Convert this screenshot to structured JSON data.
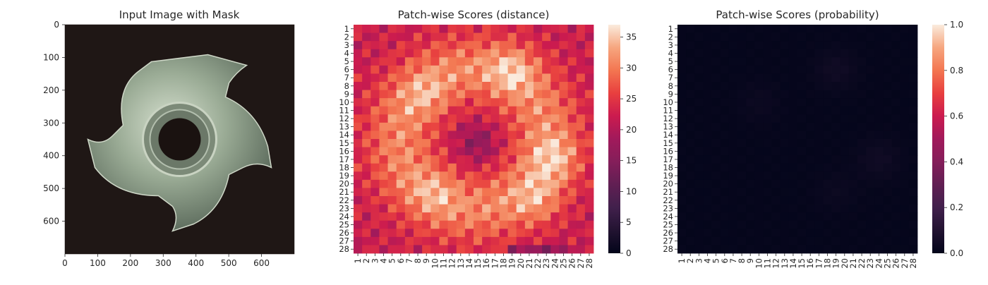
{
  "chart_data": [
    {
      "type": "image",
      "title": "Input Image with Mask",
      "xlim": [
        0,
        700
      ],
      "ylim": [
        700,
        0
      ],
      "xticks": [
        0,
        100,
        200,
        300,
        400,
        500,
        600
      ],
      "yticks": [
        0,
        100,
        200,
        300,
        400,
        500,
        600
      ],
      "image_content": "metal four-prong tee nut on dark background",
      "colors": {
        "background": "#1f1715",
        "metal": "#a8b8a0"
      }
    },
    {
      "type": "heatmap",
      "title": "Patch-wise Scores (distance)",
      "rows": 28,
      "cols": 28,
      "tick_labels": [
        "1",
        "2",
        "3",
        "4",
        "5",
        "6",
        "7",
        "8",
        "9",
        "10",
        "11",
        "12",
        "13",
        "14",
        "15",
        "16",
        "17",
        "18",
        "19",
        "20",
        "21",
        "22",
        "23",
        "24",
        "25",
        "26",
        "27",
        "28"
      ],
      "colorbar": {
        "min": 0,
        "max": 37,
        "ticks": [
          0,
          5,
          10,
          15,
          20,
          25,
          30,
          35
        ]
      },
      "colormap": "rocket",
      "pattern": "high values (~30-37) on the ring of the nut, lower values (~15-24) at centre and borders",
      "value_model": {
        "base": 22,
        "ring_amp": 9,
        "ring_radius_cells": 8.5,
        "hotspots": [
          [
            6,
            19,
            6
          ],
          [
            9,
            9,
            4
          ],
          [
            17,
            24,
            6
          ],
          [
            21,
            10,
            4
          ],
          [
            22,
            22,
            5
          ]
        ],
        "centre": [
          15,
          15,
          -6
        ]
      }
    },
    {
      "type": "heatmap",
      "title": "Patch-wise Scores (probability)",
      "rows": 28,
      "cols": 28,
      "tick_labels": [
        "1",
        "2",
        "3",
        "4",
        "5",
        "6",
        "7",
        "8",
        "9",
        "10",
        "11",
        "12",
        "13",
        "14",
        "15",
        "16",
        "17",
        "18",
        "19",
        "20",
        "21",
        "22",
        "23",
        "24",
        "25",
        "26",
        "27",
        "28"
      ],
      "colorbar": {
        "min": 0.0,
        "max": 1.0,
        "ticks": [
          "0.0",
          "0.2",
          "0.4",
          "0.6",
          "0.8",
          "1.0"
        ]
      },
      "colormap": "rocket",
      "pattern": "all values near 0 (~0.00-0.05)",
      "value_model": {
        "base": 0.005,
        "hotspots": [
          [
            6,
            19,
            0.035
          ],
          [
            17,
            24,
            0.035
          ],
          [
            21,
            19,
            0.02
          ],
          [
            10,
            10,
            0.02
          ]
        ]
      }
    }
  ]
}
